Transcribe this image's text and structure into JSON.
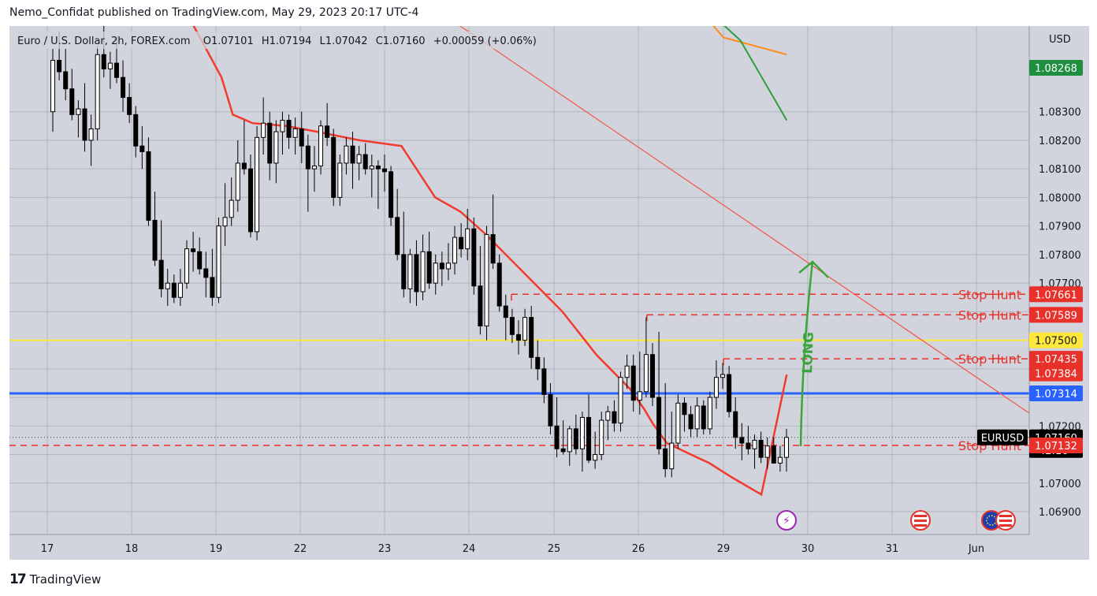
{
  "header": {
    "published": "Nemo_Confidat published on TradingView.com, May 29, 2023 20:17 UTC-4"
  },
  "footer": {
    "brand": "TradingView"
  },
  "legend": {
    "symbol": "Euro / U.S. Dollar, 2h, FOREX.com",
    "open_label": "O",
    "open": "1.07101",
    "high_label": "H",
    "high": "1.07194",
    "low_label": "L",
    "low": "1.07042",
    "close_label": "C",
    "close": "1.07160",
    "change": "+0.00059 (+0.06%)"
  },
  "colors": {
    "plot_bg": "#d1d4dc",
    "grid": "#b2b5be",
    "candle_up": "#ffffff",
    "candle_down": "#000000",
    "ema_red": "#f23a2e",
    "ema_orange": "#ff8c1a",
    "ema_green": "#2e9e3e",
    "trendline": "#f2554a",
    "level_yellow": "#ffe839",
    "level_blue": "#2962ff",
    "stop_hunt": "#e8312a",
    "arrow_green": "#3aa53a",
    "tag_green": "#1e8f3e",
    "tag_red": "#e8312a",
    "tag_yellow": "#ffe839",
    "tag_blue": "#2962ff"
  },
  "chart_data": {
    "type": "candlestick",
    "symbol": "EURUSD",
    "timeframe": "2h",
    "currency_label": "USD",
    "y_ticks": [
      "1.08300",
      "1.08200",
      "1.08100",
      "1.08000",
      "1.07900",
      "1.07800",
      "1.07700",
      "1.07200",
      "1.07000",
      "1.06900"
    ],
    "x_ticks": [
      "17",
      "18",
      "19",
      "22",
      "23",
      "24",
      "25",
      "26",
      "29",
      "30",
      "31",
      "Jun"
    ],
    "ylim": [
      1.0682,
      1.086
    ],
    "price_tags": [
      {
        "value": "1.08268",
        "kind": "ema-green"
      },
      {
        "value": "1.07661",
        "kind": "stop-hunt"
      },
      {
        "value": "1.07589",
        "kind": "stop-hunt"
      },
      {
        "value": "1.07500",
        "kind": "yellow-level"
      },
      {
        "value": "1.07435",
        "kind": "stop-hunt"
      },
      {
        "value": "1.07384",
        "kind": "ema-red"
      },
      {
        "value": "1.07314",
        "kind": "blue-level"
      },
      {
        "value": "1.07160",
        "kind": "last-price",
        "sub": "42:16"
      },
      {
        "value": "1.07132",
        "kind": "stop-hunt"
      }
    ],
    "last_price_symbol_label": "EURUSD",
    "horizontal_levels": [
      {
        "name": "yellow-level",
        "value": 1.075
      },
      {
        "name": "blue-level",
        "value": 1.07314
      }
    ],
    "stop_hunts": [
      {
        "label": "Stop Hunt",
        "value": 1.07661,
        "from_day": 24.5
      },
      {
        "label": "Stop Hunt",
        "value": 1.07589,
        "from_day": 26.3
      },
      {
        "label": "Stop Hunt",
        "value": 1.07435,
        "from_day": 29.0
      },
      {
        "label": "Stop Hunt",
        "value": 1.07132,
        "from_day": 16.0
      }
    ],
    "annotation": {
      "text": "LONG",
      "from": [
        29.75,
        1.07145
      ],
      "to": [
        30.15,
        1.0768
      ]
    },
    "trendline": {
      "from": [
        23.15,
        1.0875
      ],
      "to": [
        32.65,
        1.0724
      ]
    },
    "ema_red": [
      [
        17.6,
        1.087
      ],
      [
        18.7,
        1.0862
      ],
      [
        19.2,
        1.0842
      ],
      [
        19.6,
        1.0829
      ],
      [
        20.3,
        1.0826
      ],
      [
        21.5,
        1.0825
      ],
      [
        22.2,
        1.0823
      ],
      [
        22.7,
        1.082
      ],
      [
        23.2,
        1.0818
      ],
      [
        23.6,
        1.08
      ],
      [
        23.9,
        1.0795
      ],
      [
        24.2,
        1.0787
      ],
      [
        24.6,
        1.0775
      ],
      [
        25.1,
        1.076
      ],
      [
        25.5,
        1.0745
      ],
      [
        25.9,
        1.0733
      ],
      [
        26.2,
        1.0726
      ],
      [
        26.5,
        1.0721
      ],
      [
        27.0,
        1.0714
      ],
      [
        28.5,
        1.0707
      ],
      [
        29.1,
        1.0702
      ],
      [
        29.45,
        1.0696
      ],
      [
        29.75,
        1.0738
      ]
    ],
    "ema_orange": [
      [
        28.3,
        1.0864
      ],
      [
        29.0,
        1.0856
      ],
      [
        29.75,
        1.085
      ]
    ],
    "ema_green": [
      [
        28.6,
        1.0864
      ],
      [
        29.2,
        1.0855
      ],
      [
        29.75,
        1.0827
      ]
    ],
    "candles": [
      [
        1.083,
        1.0852,
        1.0823,
        1.0848
      ],
      [
        1.0848,
        1.0858,
        1.0841,
        1.0844
      ],
      [
        1.0844,
        1.0852,
        1.0834,
        1.0838
      ],
      [
        1.0838,
        1.0845,
        1.0827,
        1.0829
      ],
      [
        1.0829,
        1.0834,
        1.0821,
        1.0831
      ],
      [
        1.0831,
        1.084,
        1.0816,
        1.082
      ],
      [
        1.082,
        1.0829,
        1.0811,
        1.0824
      ],
      [
        1.0824,
        1.0853,
        1.082,
        1.085
      ],
      [
        1.085,
        1.0862,
        1.0842,
        1.0845
      ],
      [
        1.0845,
        1.0851,
        1.0838,
        1.0847
      ],
      [
        1.0847,
        1.0856,
        1.084,
        1.0842
      ],
      [
        1.0842,
        1.0848,
        1.083,
        1.0835
      ],
      [
        1.0835,
        1.084,
        1.0826,
        1.0829
      ],
      [
        1.0829,
        1.0832,
        1.0814,
        1.0818
      ],
      [
        1.0818,
        1.0825,
        1.081,
        1.0816
      ],
      [
        1.0816,
        1.0821,
        1.079,
        1.0792
      ],
      [
        1.0792,
        1.0802,
        1.0776,
        1.0778
      ],
      [
        1.0778,
        1.0792,
        1.0765,
        1.0768
      ],
      [
        1.0768,
        1.0775,
        1.0762,
        1.077
      ],
      [
        1.077,
        1.0773,
        1.0763,
        1.0765
      ],
      [
        1.0765,
        1.0775,
        1.0762,
        1.077
      ],
      [
        1.077,
        1.0785,
        1.0768,
        1.0782
      ],
      [
        1.0782,
        1.0788,
        1.0774,
        1.0781
      ],
      [
        1.0781,
        1.0786,
        1.0773,
        1.0775
      ],
      [
        1.0775,
        1.0781,
        1.0765,
        1.0772
      ],
      [
        1.0772,
        1.0782,
        1.0762,
        1.0765
      ],
      [
        1.0765,
        1.0793,
        1.0763,
        1.079
      ],
      [
        1.079,
        1.0805,
        1.0783,
        1.0793
      ],
      [
        1.0793,
        1.0807,
        1.079,
        1.0799
      ],
      [
        1.0799,
        1.082,
        1.0795,
        1.0812
      ],
      [
        1.0812,
        1.0827,
        1.0808,
        1.081
      ],
      [
        1.081,
        1.0815,
        1.0786,
        1.0788
      ],
      [
        1.0788,
        1.0825,
        1.0785,
        1.0821
      ],
      [
        1.0821,
        1.0835,
        1.0815,
        1.0826
      ],
      [
        1.0826,
        1.083,
        1.0806,
        1.0812
      ],
      [
        1.0812,
        1.0827,
        1.0805,
        1.0823
      ],
      [
        1.0823,
        1.083,
        1.0815,
        1.0827
      ],
      [
        1.0827,
        1.0829,
        1.0817,
        1.0821
      ],
      [
        1.0821,
        1.0828,
        1.0815,
        1.0824
      ],
      [
        1.0824,
        1.083,
        1.0812,
        1.0818
      ],
      [
        1.0818,
        1.0822,
        1.0795,
        1.081
      ],
      [
        1.081,
        1.0818,
        1.0802,
        1.0811
      ],
      [
        1.0811,
        1.0827,
        1.0808,
        1.0825
      ],
      [
        1.0825,
        1.0833,
        1.0818,
        1.0821
      ],
      [
        1.0821,
        1.0824,
        1.0797,
        1.08
      ],
      [
        1.08,
        1.0815,
        1.0797,
        1.0812
      ],
      [
        1.0812,
        1.0821,
        1.0808,
        1.0818
      ],
      [
        1.0818,
        1.0823,
        1.0803,
        1.0812
      ],
      [
        1.0812,
        1.0818,
        1.0806,
        1.0815
      ],
      [
        1.0815,
        1.0819,
        1.0808,
        1.081
      ],
      [
        1.081,
        1.0815,
        1.08,
        1.0811
      ],
      [
        1.0811,
        1.0813,
        1.0796,
        1.081
      ],
      [
        1.081,
        1.0815,
        1.0802,
        1.0809
      ],
      [
        1.0809,
        1.0811,
        1.079,
        1.0793
      ],
      [
        1.0793,
        1.0803,
        1.0778,
        1.078
      ],
      [
        1.078,
        1.0795,
        1.0765,
        1.0768
      ],
      [
        1.0768,
        1.0782,
        1.0763,
        1.078
      ],
      [
        1.078,
        1.0785,
        1.0762,
        1.0767
      ],
      [
        1.0767,
        1.0787,
        1.0764,
        1.0781
      ],
      [
        1.0781,
        1.0788,
        1.0768,
        1.077
      ],
      [
        1.077,
        1.078,
        1.0766,
        1.0777
      ],
      [
        1.0777,
        1.0781,
        1.0769,
        1.0775
      ],
      [
        1.0775,
        1.0784,
        1.0771,
        1.0777
      ],
      [
        1.0777,
        1.079,
        1.0773,
        1.0786
      ],
      [
        1.0786,
        1.0791,
        1.0779,
        1.0782
      ],
      [
        1.0782,
        1.0796,
        1.0778,
        1.0789
      ],
      [
        1.0789,
        1.0793,
        1.0766,
        1.0769
      ],
      [
        1.0769,
        1.0783,
        1.0752,
        1.0755
      ],
      [
        1.0755,
        1.079,
        1.075,
        1.0787
      ],
      [
        1.0787,
        1.0801,
        1.0775,
        1.0777
      ],
      [
        1.0777,
        1.078,
        1.076,
        1.0762
      ],
      [
        1.0762,
        1.0766,
        1.075,
        1.0758
      ],
      [
        1.0758,
        1.0761,
        1.0749,
        1.0752
      ],
      [
        1.0752,
        1.0757,
        1.0745,
        1.075
      ],
      [
        1.075,
        1.0761,
        1.0748,
        1.0758
      ],
      [
        1.0758,
        1.0762,
        1.074,
        1.0744
      ],
      [
        1.0744,
        1.075,
        1.0736,
        1.074
      ],
      [
        1.074,
        1.0744,
        1.0728,
        1.0731
      ],
      [
        1.0731,
        1.0735,
        1.0717,
        1.072
      ],
      [
        1.072,
        1.073,
        1.0709,
        1.0712
      ],
      [
        1.0712,
        1.0722,
        1.071,
        1.0711
      ],
      [
        1.0711,
        1.072,
        1.0706,
        1.0719
      ],
      [
        1.0719,
        1.0724,
        1.071,
        1.0712
      ],
      [
        1.0712,
        1.0725,
        1.0704,
        1.0723
      ],
      [
        1.0723,
        1.0731,
        1.0707,
        1.0708
      ],
      [
        1.0708,
        1.0718,
        1.0705,
        1.071
      ],
      [
        1.071,
        1.0725,
        1.0708,
        1.0722
      ],
      [
        1.0722,
        1.0727,
        1.0715,
        1.0725
      ],
      [
        1.0725,
        1.0729,
        1.0718,
        1.0721
      ],
      [
        1.0721,
        1.0739,
        1.0718,
        1.0737
      ],
      [
        1.0737,
        1.0745,
        1.0733,
        1.0741
      ],
      [
        1.0741,
        1.0745,
        1.0725,
        1.0729
      ],
      [
        1.0729,
        1.0746,
        1.0724,
        1.0732
      ],
      [
        1.0732,
        1.0758,
        1.073,
        1.0745
      ],
      [
        1.0745,
        1.0749,
        1.0727,
        1.073
      ],
      [
        1.073,
        1.0753,
        1.071,
        1.0712
      ],
      [
        1.0712,
        1.0735,
        1.0702,
        1.0705
      ],
      [
        1.0705,
        1.0725,
        1.0702,
        1.0714
      ],
      [
        1.0714,
        1.0731,
        1.0712,
        1.0728
      ],
      [
        1.0728,
        1.073,
        1.0718,
        1.0724
      ],
      [
        1.0724,
        1.0727,
        1.0716,
        1.0719
      ],
      [
        1.0719,
        1.073,
        1.0716,
        1.0727
      ],
      [
        1.0727,
        1.0729,
        1.0717,
        1.0719
      ],
      [
        1.0719,
        1.0732,
        1.0717,
        1.073
      ],
      [
        1.073,
        1.0743,
        1.0726,
        1.0737
      ],
      [
        1.0737,
        1.0742,
        1.0733,
        1.0738
      ],
      [
        1.0738,
        1.0741,
        1.0723,
        1.0725
      ],
      [
        1.0725,
        1.073,
        1.0712,
        1.0716
      ],
      [
        1.0716,
        1.0721,
        1.0708,
        1.0714
      ],
      [
        1.0714,
        1.072,
        1.071,
        1.0712
      ],
      [
        1.0712,
        1.0717,
        1.0705,
        1.0715
      ],
      [
        1.0715,
        1.0718,
        1.0707,
        1.0709
      ],
      [
        1.0709,
        1.0716,
        1.0705,
        1.0713
      ],
      [
        1.0713,
        1.0716,
        1.0707,
        1.0707
      ],
      [
        1.0707,
        1.0713,
        1.0704,
        1.0709
      ],
      [
        1.0709,
        1.0719,
        1.0704,
        1.0716
      ]
    ]
  }
}
